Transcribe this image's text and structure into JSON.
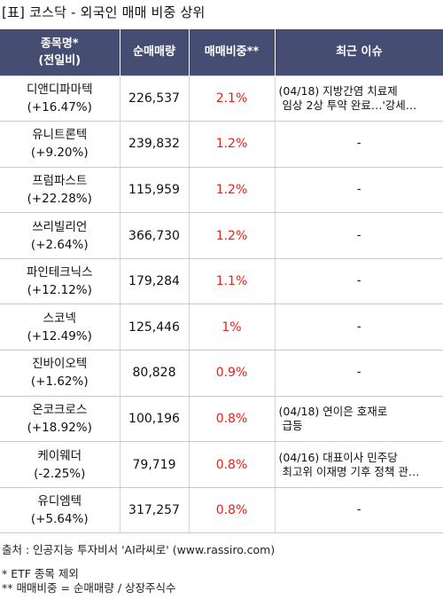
{
  "title": "[표] 코스닥 - 외국인 매매 비중 상위",
  "headers": {
    "name": [
      "종목명*",
      "(전일비)"
    ],
    "volume": "순매매량",
    "ratio": "매매비중**",
    "issue": "최근 이슈"
  },
  "rows": [
    {
      "name": "디앤디파마텍",
      "change": "(+16.47%)",
      "volume": "226,537",
      "ratio": "2.1%",
      "issue": [
        "(04/18) 지방간염 치료제",
        "임상 2상 투약 완료…'강세…"
      ]
    },
    {
      "name": "유니트론텍",
      "change": "(+9.20%)",
      "volume": "239,832",
      "ratio": "1.2%",
      "issue": [
        "-"
      ]
    },
    {
      "name": "프럼파스트",
      "change": "(+22.28%)",
      "volume": "115,959",
      "ratio": "1.2%",
      "issue": [
        "-"
      ]
    },
    {
      "name": "쓰리빌리언",
      "change": "(+2.64%)",
      "volume": "366,730",
      "ratio": "1.2%",
      "issue": [
        "-"
      ]
    },
    {
      "name": "파인테크닉스",
      "change": "(+12.12%)",
      "volume": "179,284",
      "ratio": "1.1%",
      "issue": [
        "-"
      ]
    },
    {
      "name": "스코넥",
      "change": "(+12.49%)",
      "volume": "125,446",
      "ratio": "1%",
      "issue": [
        "-"
      ]
    },
    {
      "name": "진바이오텍",
      "change": "(+1.62%)",
      "volume": "80,828",
      "ratio": "0.9%",
      "issue": [
        "-"
      ]
    },
    {
      "name": "온코크로스",
      "change": "(+18.92%)",
      "volume": "100,196",
      "ratio": "0.8%",
      "issue": [
        "(04/18) 연이은 호재로",
        "급등"
      ]
    },
    {
      "name": "케이웨더",
      "change": "(-2.25%)",
      "volume": "79,719",
      "ratio": "0.8%",
      "issue": [
        "(04/16) 대표이사 민주당",
        "최고위 이재명 기후 정책 관…"
      ]
    },
    {
      "name": "유디엠텍",
      "change": "(+5.64%)",
      "volume": "317,257",
      "ratio": "0.8%",
      "issue": [
        "-"
      ]
    }
  ],
  "footer": {
    "source": "출처 : 인공지능 투자비서 'AI라씨로' (www.rassiro.com)",
    "note1": "* ETF 종목 제외",
    "note2": "** 매매비중 = 순매매량 / 상장주식수"
  },
  "colors": {
    "header_bg": "#454d72",
    "ratio_text": "#e8201a"
  }
}
